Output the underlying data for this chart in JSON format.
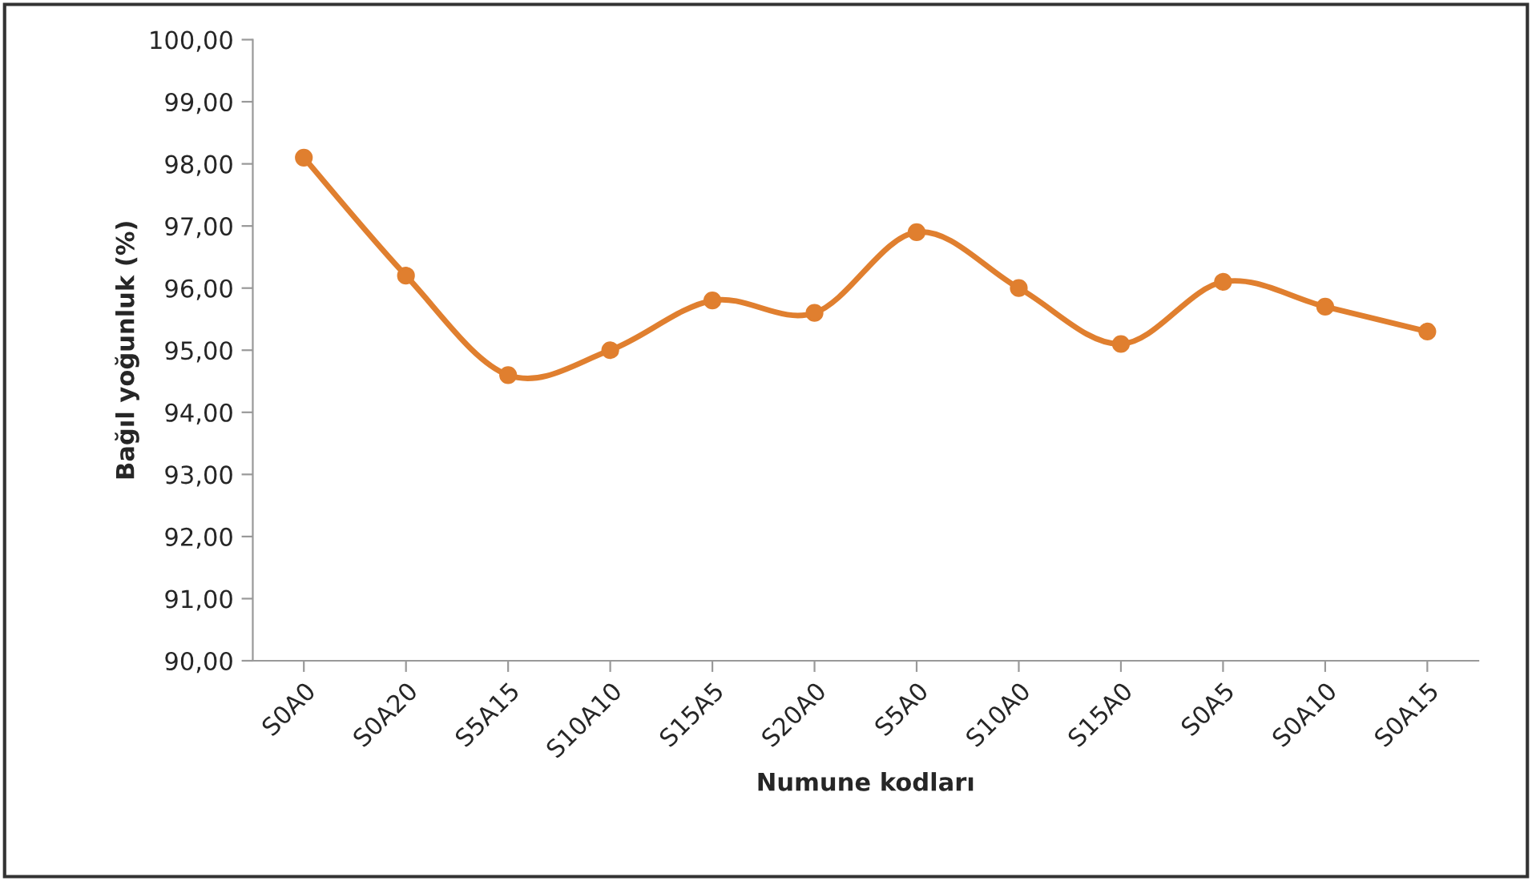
{
  "chart_data": {
    "type": "line",
    "xlabel": "Numune kodları",
    "ylabel": "Bağıl yoğunluk (%)",
    "categories": [
      "S0A0",
      "S0A20",
      "S5A15",
      "S10A10",
      "S15A5",
      "S20A0",
      "S5A0",
      "S10A0",
      "S15A0",
      "S0A5",
      "S0A10",
      "S0A15"
    ],
    "series": [
      {
        "color": "#e07f2f",
        "values": [
          98.1,
          96.2,
          94.6,
          95.0,
          95.8,
          95.6,
          96.9,
          96.0,
          95.1,
          96.1,
          95.7,
          95.3
        ]
      }
    ],
    "ylim": [
      90,
      100
    ],
    "yticks": [
      {
        "value": 90,
        "label": "90,00"
      },
      {
        "value": 91,
        "label": "91,00"
      },
      {
        "value": 92,
        "label": "92,00"
      },
      {
        "value": 93,
        "label": "93,00"
      },
      {
        "value": 94,
        "label": "94,00"
      },
      {
        "value": 95,
        "label": "95,00"
      },
      {
        "value": 96,
        "label": "96,00"
      },
      {
        "value": 97,
        "label": "97,00"
      },
      {
        "value": 98,
        "label": "98,00"
      },
      {
        "value": 99,
        "label": "99,00"
      },
      {
        "value": 100,
        "label": "100,00"
      }
    ],
    "marker": "circle",
    "line_style": "solid",
    "grid": false
  }
}
